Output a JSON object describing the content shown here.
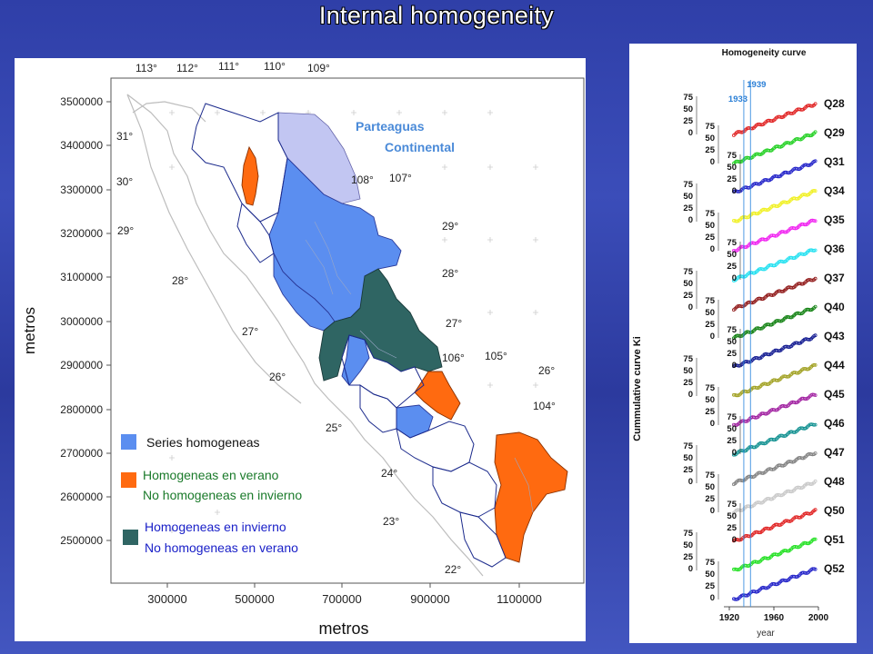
{
  "slide": {
    "title": "Internal homogeneity"
  },
  "map": {
    "top_lon": [
      "113°",
      "112°",
      "111°",
      "110°",
      "109°"
    ],
    "y_ticks": [
      "3500000",
      "3400000",
      "3300000",
      "3200000",
      "3100000",
      "3000000",
      "2900000",
      "2800000",
      "2700000",
      "2600000",
      "2500000"
    ],
    "x_ticks": [
      "300000",
      "500000",
      "700000",
      "900000",
      "1100000"
    ],
    "y_label": "metros",
    "x_label": "metros",
    "lat_labels": [
      "31°",
      "30°",
      "29°",
      "28°",
      "27°",
      "26°",
      "25°",
      "24°",
      "23°",
      "22°",
      "29°",
      "28°",
      "27°",
      "26°"
    ],
    "lon_labels": [
      "108°",
      "107°",
      "106°",
      "105°",
      "104°"
    ],
    "divide": {
      "line1": "Parteaguas",
      "line2": "Continental"
    },
    "legend": {
      "homog": "Series homogeneas",
      "summer1": "Homogeneas en verano",
      "summer2": "No homogeneas en invierno",
      "winter1": "Homogeneas en invierno",
      "winter2": "No homogeneas en verano"
    },
    "colors": {
      "homog": "#5b8ef0",
      "summer": "#ff6a10",
      "winter": "#2f6563",
      "lavender": "#c2c6f2"
    }
  },
  "chart_data": {
    "type": "line",
    "title": "Homogeneity curve",
    "xlabel": "year",
    "ylabel": "Cummulative curve Ki",
    "x_ticks": [
      "1920",
      "1960",
      "2000"
    ],
    "xlim": [
      1920,
      2000
    ],
    "markers": [
      "1933",
      "1939"
    ],
    "y_ticks": [
      "75",
      "50",
      "25",
      "0"
    ],
    "series": [
      {
        "name": "Q28",
        "color": "#e02020"
      },
      {
        "name": "Q29",
        "color": "#20d020"
      },
      {
        "name": "Q31",
        "color": "#2020c8"
      },
      {
        "name": "Q34",
        "color": "#f0f020"
      },
      {
        "name": "Q35",
        "color": "#f020f0"
      },
      {
        "name": "Q36",
        "color": "#20e0f0"
      },
      {
        "name": "Q37",
        "color": "#901818"
      },
      {
        "name": "Q40",
        "color": "#108010"
      },
      {
        "name": "Q43",
        "color": "#101890"
      },
      {
        "name": "Q44",
        "color": "#a0a020"
      },
      {
        "name": "Q45",
        "color": "#a020a0"
      },
      {
        "name": "Q46",
        "color": "#109090"
      },
      {
        "name": "Q47",
        "color": "#808080"
      },
      {
        "name": "Q48",
        "color": "#c8c8c8"
      },
      {
        "name": "Q50",
        "color": "#e02020"
      },
      {
        "name": "Q51",
        "color": "#20e020"
      },
      {
        "name": "Q52",
        "color": "#2020c8"
      }
    ]
  }
}
